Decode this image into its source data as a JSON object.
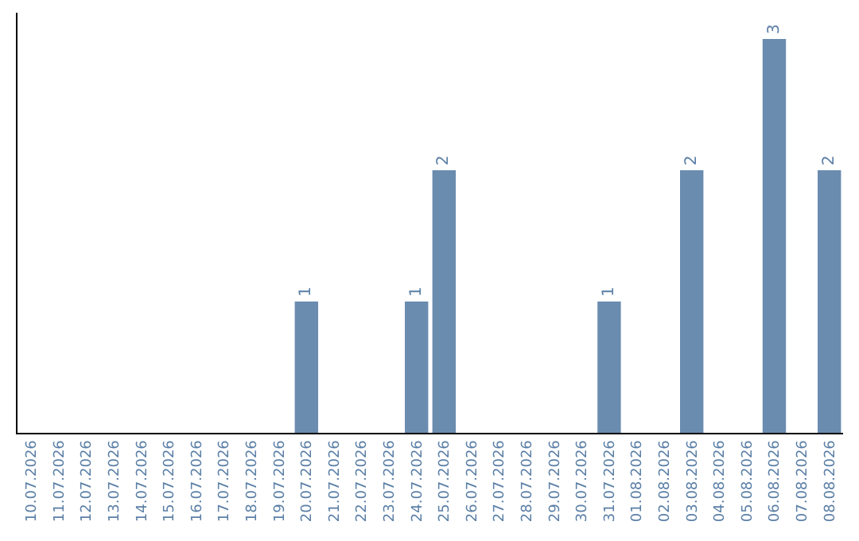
{
  "chart_data": {
    "type": "bar",
    "categories": [
      "10.07.2026",
      "11.07.2026",
      "12.07.2026",
      "13.07.2026",
      "14.07.2026",
      "15.07.2026",
      "16.07.2026",
      "17.07.2026",
      "18.07.2026",
      "19.07.2026",
      "20.07.2026",
      "21.07.2026",
      "22.07.2026",
      "23.07.2026",
      "24.07.2026",
      "25.07.2026",
      "26.07.2026",
      "27.07.2026",
      "28.07.2026",
      "29.07.2026",
      "30.07.2026",
      "31.07.2026",
      "01.08.2026",
      "02.08.2026",
      "03.08.2026",
      "04.08.2026",
      "05.08.2026",
      "06.08.2026",
      "07.08.2026",
      "08.08.2026"
    ],
    "values": [
      0,
      0,
      0,
      0,
      0,
      0,
      0,
      0,
      0,
      0,
      1,
      0,
      0,
      0,
      1,
      2,
      0,
      0,
      0,
      0,
      0,
      1,
      0,
      0,
      2,
      0,
      0,
      3,
      0,
      2
    ],
    "value_labels": [
      null,
      null,
      null,
      null,
      null,
      null,
      null,
      null,
      null,
      null,
      "1",
      null,
      null,
      null,
      "1",
      "2",
      null,
      null,
      null,
      null,
      null,
      "1",
      null,
      null,
      "2",
      null,
      null,
      "3",
      null,
      "2"
    ],
    "color": "#6a8caf",
    "ylim": [
      0,
      3.2
    ],
    "tick_labels": "x"
  }
}
